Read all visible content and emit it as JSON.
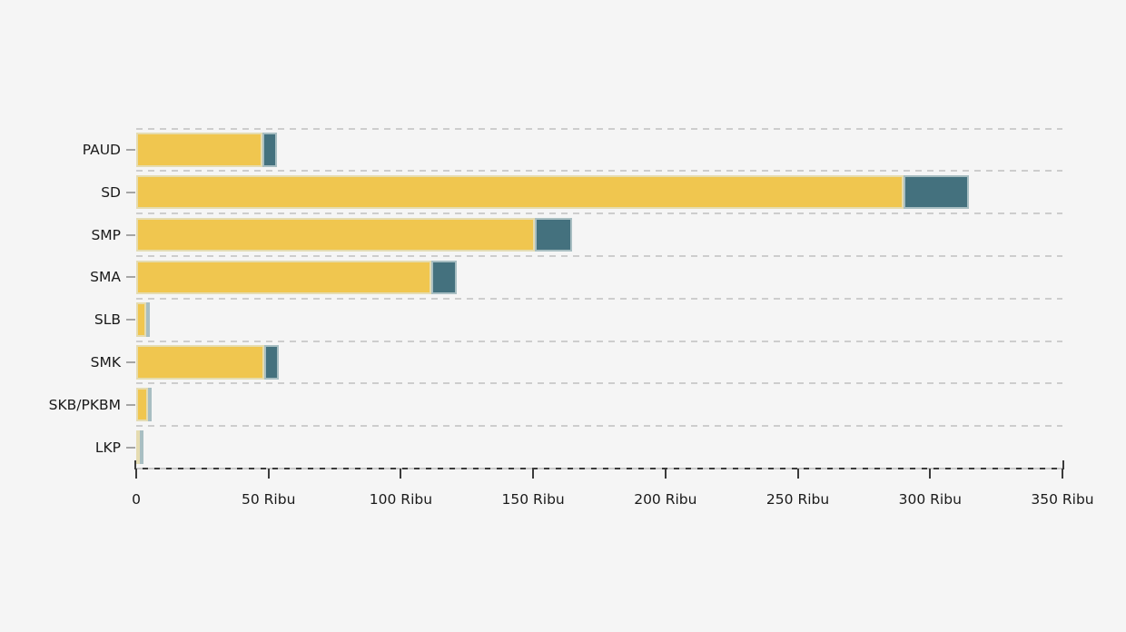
{
  "chart_data": {
    "type": "bar",
    "orientation": "horizontal",
    "stacked": true,
    "title": "",
    "xlabel": "",
    "ylabel": "",
    "x_unit": "Ribu",
    "xlim": [
      0,
      350
    ],
    "grid": "dashed-horizontal",
    "legend": "none",
    "categories": [
      "PAUD",
      "SD",
      "SMP",
      "SMA",
      "SLB",
      "SMK",
      "SKB/PKBM",
      "LKP"
    ],
    "series": [
      {
        "name": "segment-yellow",
        "color": "#F0C64F",
        "values": [
          47.8,
          290.0,
          150.8,
          111.5,
          3.7,
          48.4,
          4.5,
          1.4
        ]
      },
      {
        "name": "segment-teal",
        "color": "#44717E",
        "values": [
          5.4,
          24.6,
          13.9,
          9.5,
          1.1,
          5.4,
          0.2,
          0.1
        ]
      }
    ],
    "x_ticks": [
      {
        "value": 0,
        "label": "0"
      },
      {
        "value": 50,
        "label": "50 Ribu"
      },
      {
        "value": 100,
        "label": "100 Ribu"
      },
      {
        "value": 150,
        "label": "150 Ribu"
      },
      {
        "value": 200,
        "label": "200 Ribu"
      },
      {
        "value": 250,
        "label": "250 Ribu"
      },
      {
        "value": 300,
        "label": "300 Ribu"
      },
      {
        "value": 350,
        "label": "350 Ribu"
      }
    ]
  },
  "colors": {
    "background": "#F5F5F5",
    "gridline": "#CDCDCD",
    "axis_line": "#3B3B3B",
    "y_tick": "#A6A6A6",
    "text": "#1A1A1A",
    "bar_yellow": "#F0C64F",
    "bar_teal": "#44717E"
  }
}
